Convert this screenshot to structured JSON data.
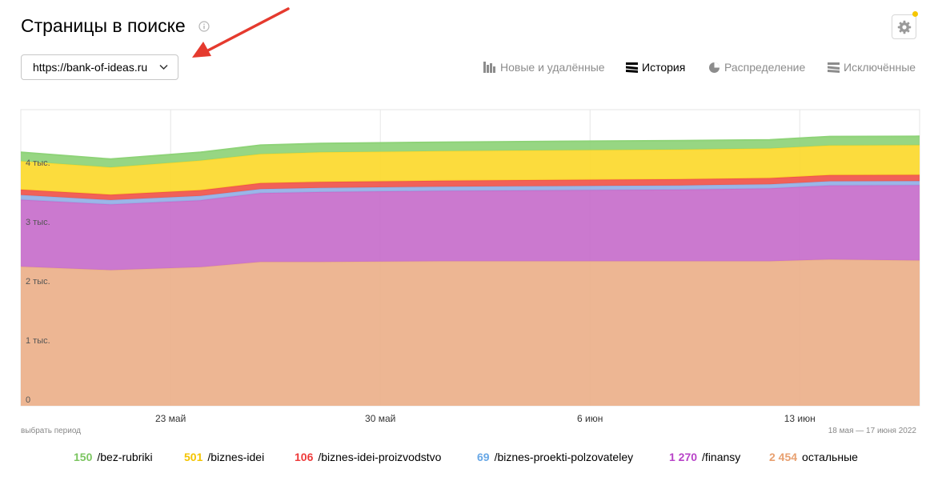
{
  "header": {
    "title": "Страницы в поиске"
  },
  "host_select": {
    "value": "https://bank-of-ideas.ru"
  },
  "tabs": [
    {
      "label": "Новые и удалённые",
      "icon": "bars-icon",
      "active": false
    },
    {
      "label": "История",
      "icon": "layers-icon",
      "active": true
    },
    {
      "label": "Распределение",
      "icon": "pie-icon",
      "active": false
    },
    {
      "label": "Исключённые",
      "icon": "layers-icon",
      "active": false
    }
  ],
  "footer": {
    "period_link": "выбрать период",
    "date_range": "18 мая — 17 июня 2022"
  },
  "chart_data": {
    "type": "area",
    "stacked": true,
    "y_tick_labels": [
      "0",
      "1 тыс.",
      "2 тыс.",
      "3 тыс.",
      "4 тыс."
    ],
    "y_ticks": [
      0,
      1000,
      2000,
      3000,
      4000
    ],
    "ylim": [
      0,
      5000
    ],
    "x_tick_labels": [
      "23 май",
      "30 май",
      "6 июн",
      "13 июн"
    ],
    "grid": true,
    "x": [
      "2022-05-18",
      "2022-05-21",
      "2022-05-24",
      "2022-05-26",
      "2022-05-28",
      "2022-06-01",
      "2022-06-05",
      "2022-06-09",
      "2022-06-12",
      "2022-06-14",
      "2022-06-17"
    ],
    "series": [
      {
        "name": "остальные",
        "color": "#ebb08a",
        "total": "2 454",
        "values": [
          2350,
          2290,
          2340,
          2430,
          2430,
          2440,
          2440,
          2440,
          2440,
          2470,
          2454
        ]
      },
      {
        "name": "/finansy",
        "color": "#c76ecb",
        "total": "1 270",
        "values": [
          1130,
          1110,
          1130,
          1160,
          1180,
          1190,
          1200,
          1210,
          1230,
          1250,
          1270
        ]
      },
      {
        "name": "/biznes-proekti-polzovateley",
        "color": "#92b0e6",
        "total": "69",
        "values": [
          80,
          75,
          75,
          70,
          70,
          70,
          70,
          70,
          70,
          70,
          69
        ]
      },
      {
        "name": "/biznes-idei-proizvodstvo",
        "color": "#f0544a",
        "total": "106",
        "values": [
          90,
          90,
          95,
          100,
          100,
          100,
          105,
          105,
          105,
          106,
          106
        ]
      },
      {
        "name": "/biznes-idei",
        "color": "#fcd92d",
        "total": "501",
        "values": [
          480,
          460,
          500,
          490,
          500,
          500,
          500,
          500,
          500,
          500,
          501
        ]
      },
      {
        "name": "/bez-rubriki",
        "color": "#8ed378",
        "total": "150",
        "values": [
          150,
          140,
          140,
          150,
          150,
          150,
          150,
          150,
          145,
          150,
          150
        ]
      }
    ]
  },
  "colors": {
    "bez_rubriki_value": "#7bc560",
    "biznes_idei_value": "#f4c400",
    "proizvodstvo_value": "#ee3a3a",
    "polzovateley_value": "#67a7e6",
    "finansy_value": "#b843c8",
    "ostalnye_value": "#e8a070",
    "accent_dot": "#f5c600"
  }
}
